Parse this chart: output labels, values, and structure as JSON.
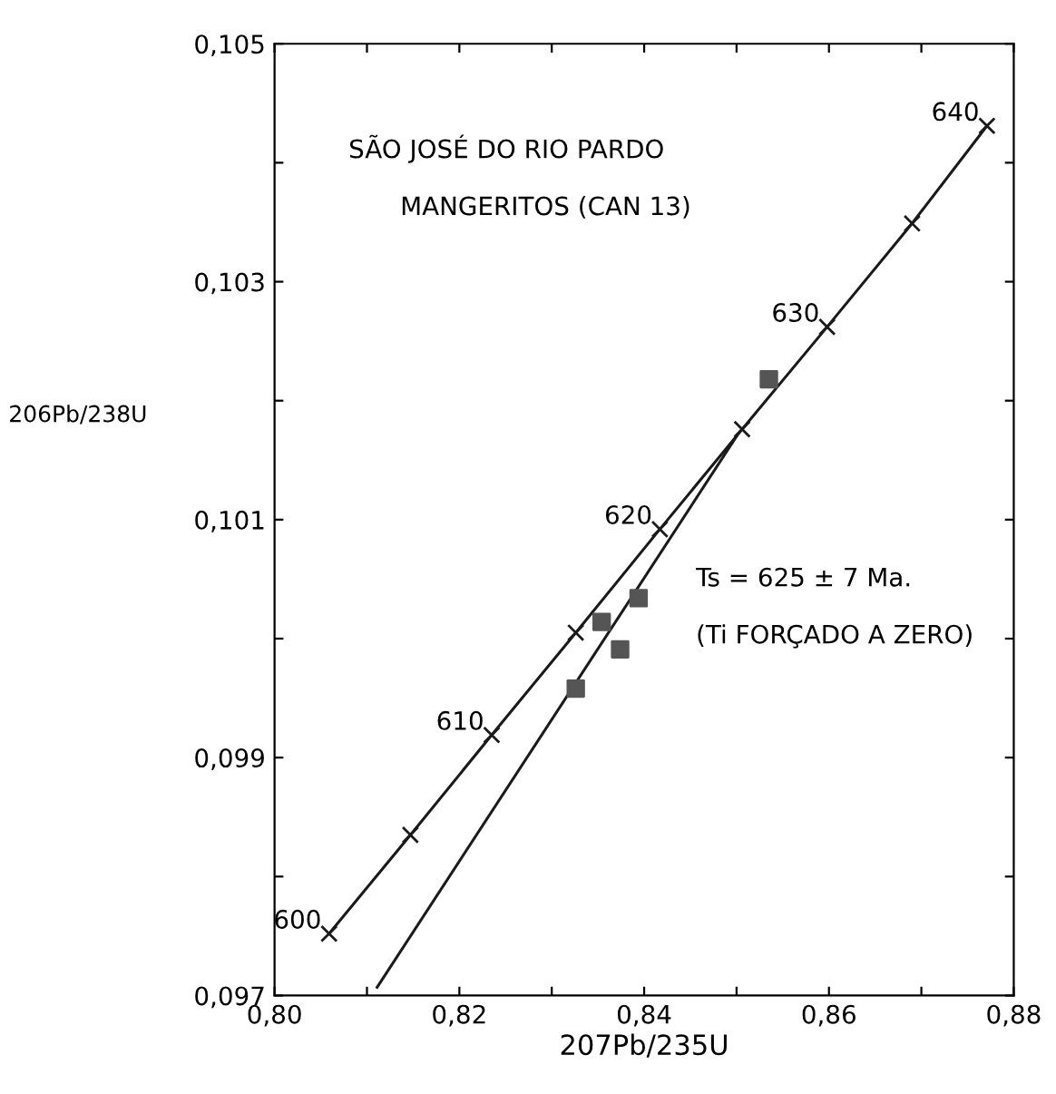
{
  "chart_data": {
    "type": "line",
    "xlabel": "207Pb/235U",
    "ylabel": "206Pb/238U",
    "xlim": [
      0.8,
      0.88
    ],
    "ylim": [
      0.097,
      0.105
    ],
    "xticks": [
      {
        "value": 0.8,
        "label": "0,80"
      },
      {
        "value": 0.81,
        "label": null
      },
      {
        "value": 0.82,
        "label": "0,82"
      },
      {
        "value": 0.83,
        "label": null
      },
      {
        "value": 0.84,
        "label": "0,84"
      },
      {
        "value": 0.85,
        "label": null
      },
      {
        "value": 0.86,
        "label": "0,86"
      },
      {
        "value": 0.87,
        "label": null
      },
      {
        "value": 0.88,
        "label": "0,88"
      }
    ],
    "yticks": [
      {
        "value": 0.097,
        "label": "0,097"
      },
      {
        "value": 0.098,
        "label": null
      },
      {
        "value": 0.099,
        "label": "0,099"
      },
      {
        "value": 0.1,
        "label": null
      },
      {
        "value": 0.101,
        "label": "0,101"
      },
      {
        "value": 0.102,
        "label": null
      },
      {
        "value": 0.103,
        "label": "0,103"
      },
      {
        "value": 0.104,
        "label": null
      },
      {
        "value": 0.105,
        "label": "0,105"
      }
    ],
    "grid": false,
    "legend": false,
    "series": [
      {
        "color": "#1a1a1a",
        "marker": "cross",
        "x": [
          0.8059,
          0.8147,
          0.8235,
          0.8326,
          0.8417,
          0.8506,
          0.8598,
          0.869,
          0.8771
        ],
        "values": [
          0.09752,
          0.09835,
          0.09919,
          0.10005,
          0.10092,
          0.10176,
          0.10262,
          0.10349,
          0.10431
        ]
      },
      {
        "type": "line",
        "color": "#1a1a1a",
        "marker": "none",
        "x": [
          0.8111,
          0.85
        ],
        "values": [
          0.09707,
          0.1017
        ]
      },
      {
        "type": "scatter",
        "color": "#555555",
        "marker": "square",
        "x": [
          0.8326,
          0.8354,
          0.8374,
          0.8394,
          0.8535
        ],
        "values": [
          0.09958,
          0.10014,
          0.09991,
          0.10034,
          0.10218
        ]
      }
    ],
    "annotations": [
      "SÃO JOSÉ DO RIO PARDO",
      "MANGERITOS (CAN 13)",
      "Ts = 625 ± 7 Ma.",
      "(Ti FORÇADO A ZERO)",
      {
        "text": "600",
        "x": 0.8059,
        "y": 0.09752
      },
      {
        "text": "610",
        "x": 0.8235,
        "y": 0.09919
      },
      {
        "text": "620",
        "x": 0.8417,
        "y": 0.10092
      },
      {
        "text": "630",
        "x": 0.8598,
        "y": 0.10262
      },
      {
        "text": "640",
        "x": 0.8771,
        "y": 0.10431
      }
    ]
  }
}
